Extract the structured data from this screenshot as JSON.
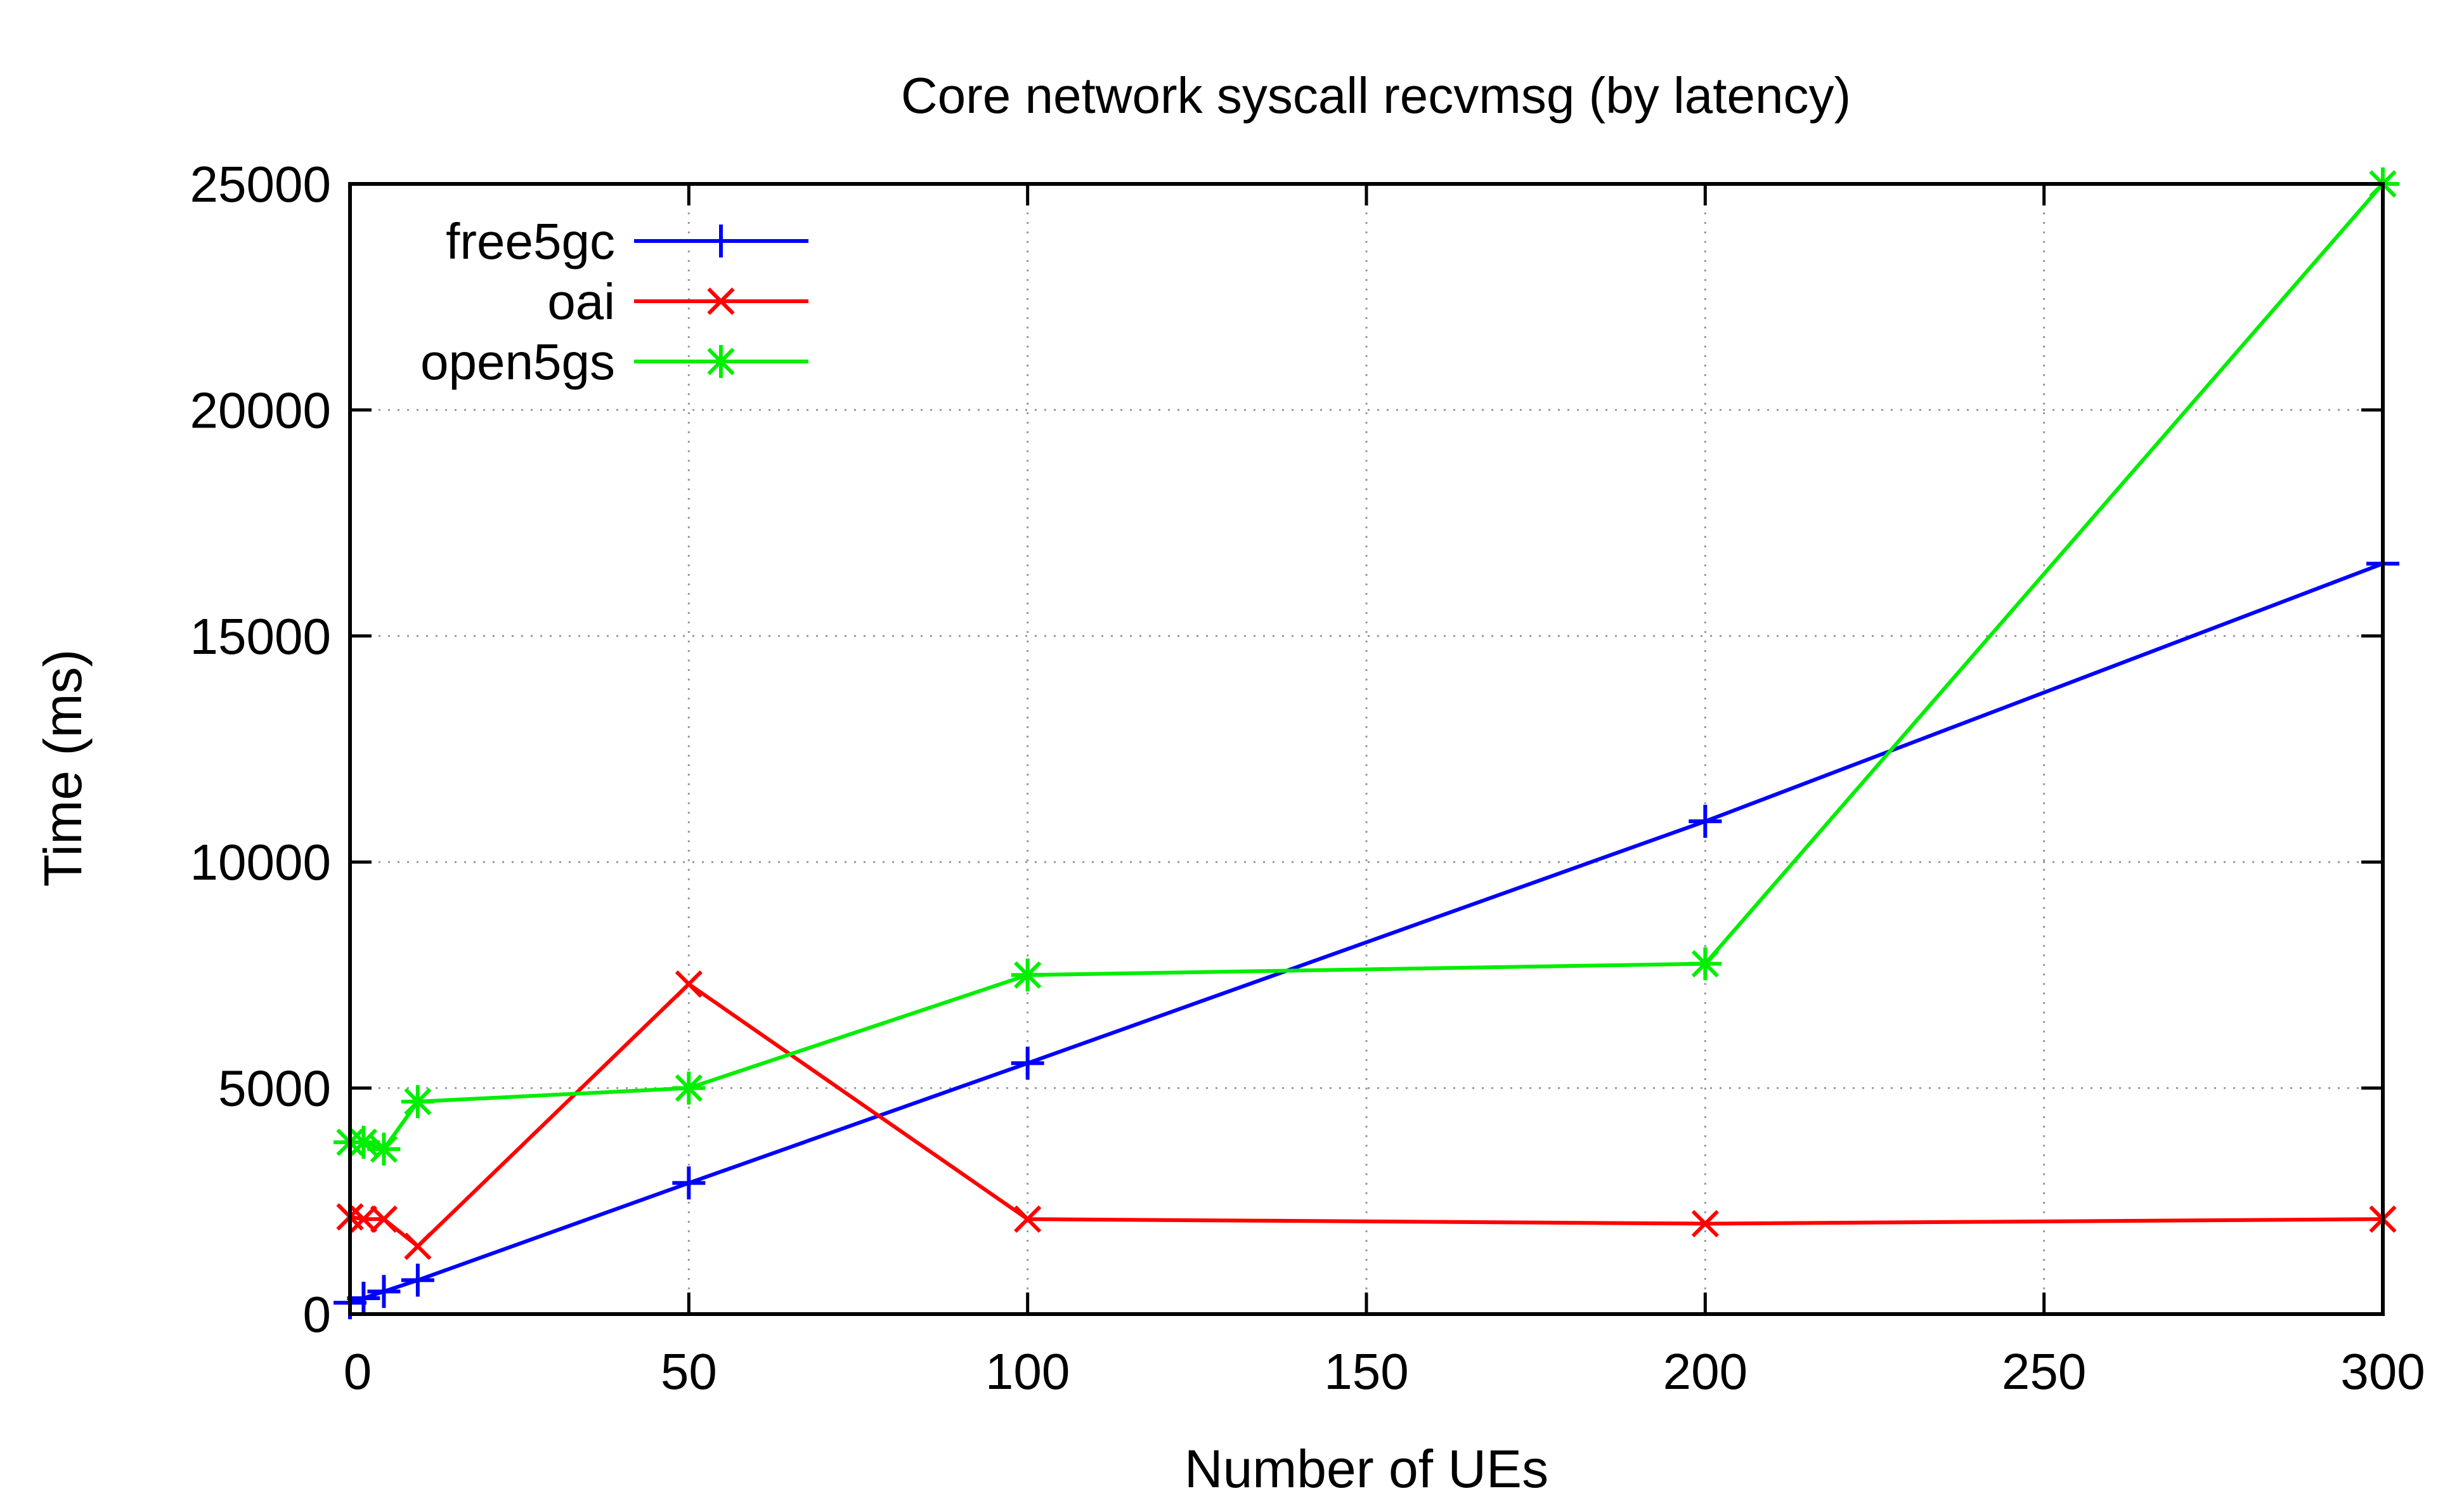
{
  "chart_data": {
    "type": "line",
    "title": "Core network syscall recvmsg (by latency)",
    "xlabel": "Number of UEs",
    "ylabel": "Time (ms)",
    "xlim": [
      0,
      300
    ],
    "ylim": [
      0,
      25000
    ],
    "x_ticks": [
      "0",
      "50",
      "100",
      "150",
      "200",
      "250",
      "300"
    ],
    "y_ticks": [
      "0",
      "5000",
      "10000",
      "15000",
      "20000",
      "25000"
    ],
    "grid": true,
    "legend_position": "top-left",
    "series": [
      {
        "name": "free5gc",
        "color": "#0000ff",
        "marker": "plus",
        "x": [
          0,
          2,
          5,
          10,
          50,
          100,
          200,
          300
        ],
        "y": [
          250,
          350,
          500,
          750,
          2900,
          5550,
          10900,
          16600
        ]
      },
      {
        "name": "oai",
        "color": "#ff0000",
        "marker": "cross",
        "x": [
          0,
          2,
          5,
          10,
          50,
          100,
          200,
          300
        ],
        "y": [
          2150,
          2100,
          2100,
          1500,
          7300,
          2100,
          2000,
          2100
        ]
      },
      {
        "name": "open5gs",
        "color": "#00ee00",
        "marker": "star",
        "x": [
          0,
          2,
          5,
          10,
          50,
          100,
          200,
          300
        ],
        "y": [
          3800,
          3800,
          3650,
          4700,
          5000,
          7500,
          7750,
          25000
        ]
      }
    ]
  }
}
